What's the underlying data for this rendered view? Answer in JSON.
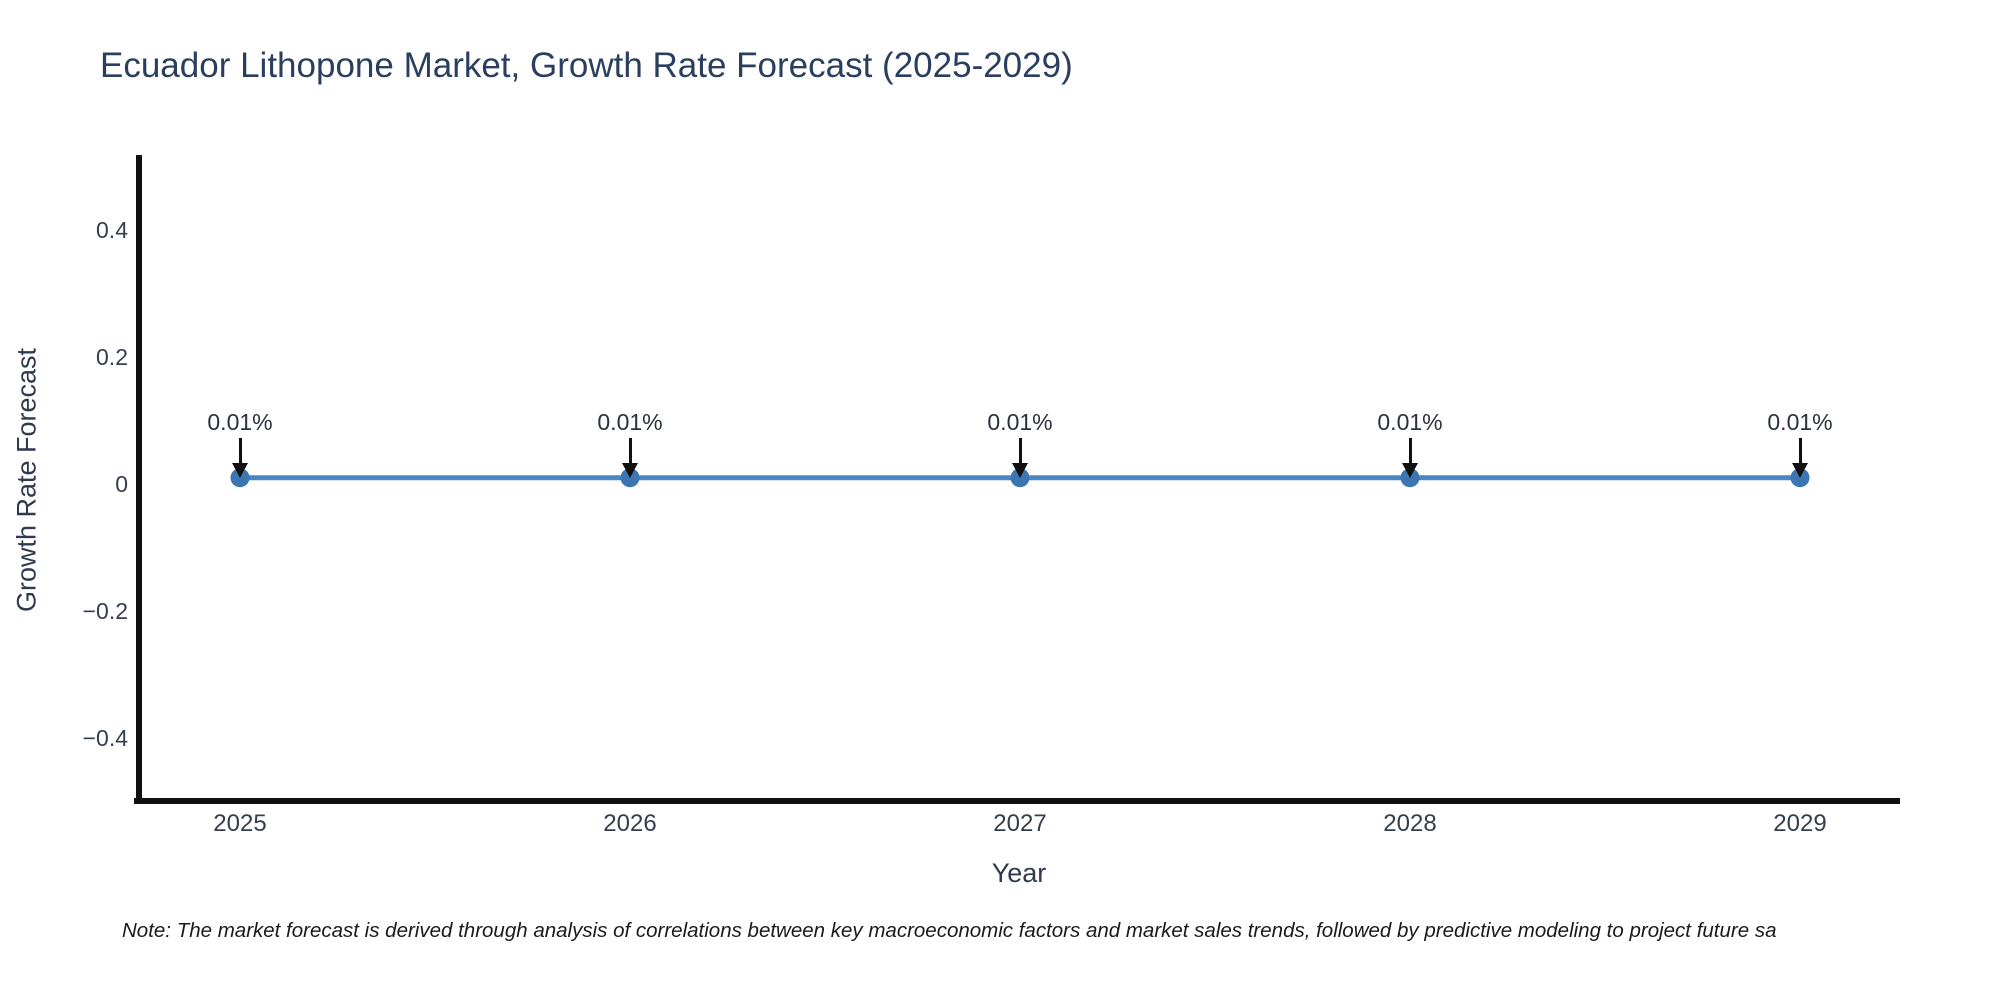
{
  "title": "Ecuador Lithopone Market, Growth Rate Forecast (2025-2029)",
  "note": "Note: The market forecast is derived through analysis of correlations between key macroeconomic factors and market sales trends, followed by predictive modeling to project future sa",
  "colors": {
    "background": "#ffffff",
    "title_text": "#2a3f5f",
    "axis_text": "#333e4f",
    "annotation_text": "#2a323f",
    "axis_line": "#111111",
    "series_line": "#4a86c2",
    "marker_fill": "#3b76b3",
    "arrow": "#111111",
    "note_text": "#1a1a1a"
  },
  "chart_data": {
    "type": "line",
    "title": "Ecuador Lithopone Market, Growth Rate Forecast (2025-2029)",
    "xlabel": "Year",
    "ylabel": "Growth Rate Forecast",
    "categories": [
      "2025",
      "2026",
      "2027",
      "2028",
      "2029"
    ],
    "series": [
      {
        "name": "Growth Rate Forecast",
        "values": [
          0.01,
          0.01,
          0.01,
          0.01,
          0.01
        ]
      }
    ],
    "point_labels": [
      "0.01%",
      "0.01%",
      "0.01%",
      "0.01%",
      "0.01%"
    ],
    "annotation_style": "down-arrow-to-point",
    "yticks": [
      0.4,
      0.2,
      0,
      -0.2,
      -0.4
    ],
    "ytick_labels": [
      "0.4",
      "0.2",
      "0",
      "−0.2",
      "−0.4"
    ],
    "ylim": [
      -0.502,
      0.515
    ],
    "grid": false,
    "legend": false,
    "marker": "circle"
  }
}
